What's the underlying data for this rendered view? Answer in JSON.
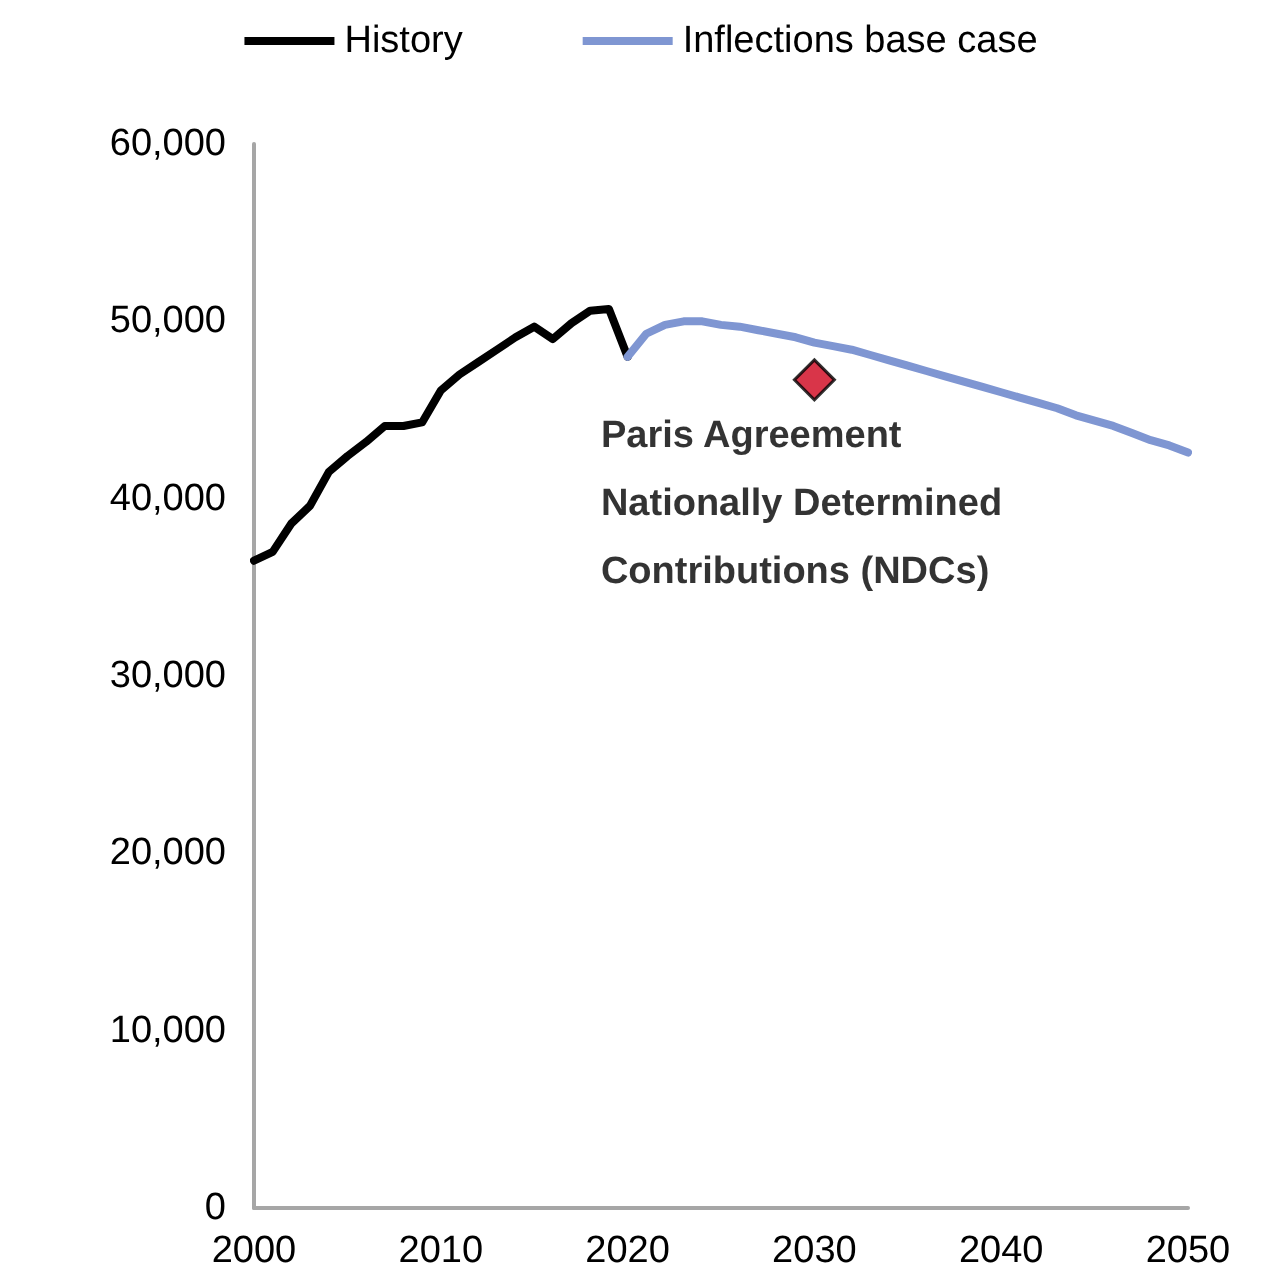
{
  "chart_data": {
    "type": "line",
    "marker": "none",
    "legend": "top",
    "xlim": [
      2000,
      2050
    ],
    "xticks": [
      2000,
      2010,
      2020,
      2030,
      2040,
      2050
    ],
    "ylim": [
      0,
      60000
    ],
    "yticks": [
      0,
      {
        "value": 10000,
        "label": "10,000"
      },
      {
        "value": 20000,
        "label": "20,000"
      },
      {
        "value": 30000,
        "label": "30,000"
      },
      {
        "value": 40000,
        "label": "40,000"
      },
      {
        "value": 50000,
        "label": "50,000"
      },
      {
        "value": 60000,
        "label": "60,000"
      }
    ],
    "series": [
      {
        "name": "History",
        "color": "#000000",
        "x": [
          2000,
          2001,
          2002,
          2003,
          2004,
          2005,
          2006,
          2007,
          2008,
          2009,
          2010,
          2011,
          2012,
          2013,
          2014,
          2015,
          2016,
          2017,
          2018,
          2019,
          2020
        ],
        "values": [
          36500,
          37000,
          38600,
          39600,
          41500,
          42400,
          43200,
          44100,
          44100,
          44300,
          46100,
          47000,
          47700,
          48400,
          49100,
          49700,
          49000,
          49900,
          50600,
          50700,
          48000
        ]
      },
      {
        "name": "Inflections base case",
        "color": "#7f96d2",
        "x": [
          2020,
          2021,
          2022,
          2023,
          2024,
          2025,
          2026,
          2027,
          2028,
          2029,
          2030,
          2031,
          2032,
          2033,
          2034,
          2035,
          2036,
          2037,
          2038,
          2039,
          2040,
          2041,
          2042,
          2043,
          2044,
          2045,
          2046,
          2047,
          2048,
          2049,
          2050
        ],
        "values": [
          48000,
          49300,
          49800,
          50000,
          50000,
          49800,
          49700,
          49500,
          49300,
          49100,
          48800,
          48600,
          48400,
          48100,
          47800,
          47500,
          47200,
          46900,
          46600,
          46300,
          46000,
          45700,
          45400,
          45100,
          44700,
          44400,
          44100,
          43700,
          43300,
          43000,
          42600
        ]
      },
      {
        "name": "Paris Agreement Nationally Determined Contributions (NDCs)",
        "type": "scatter",
        "marker": "diamond",
        "color": "#d0021b",
        "x": [
          2030
        ],
        "values": [
          46700
        ]
      }
    ]
  }
}
